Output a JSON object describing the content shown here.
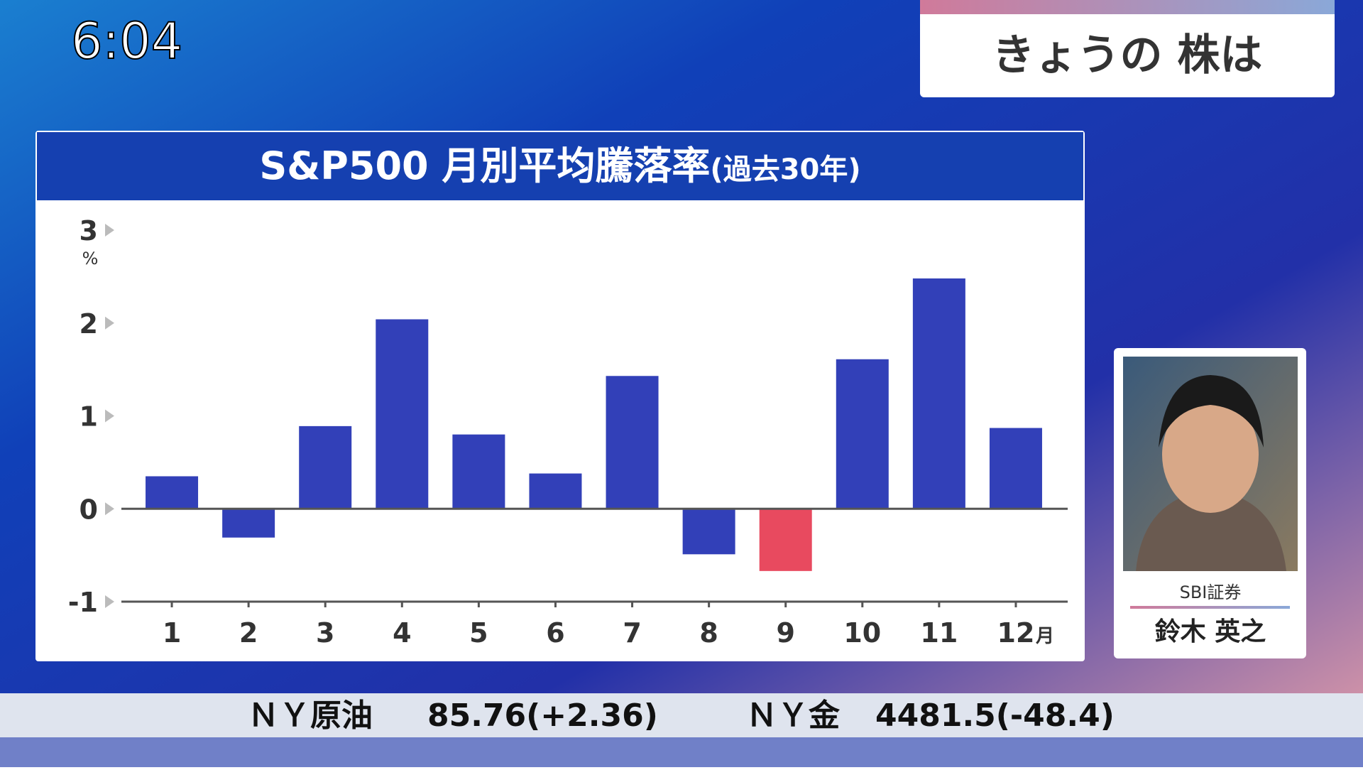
{
  "clock": "6:04",
  "segment_title": "きょうの 株は",
  "chart_data": {
    "type": "bar",
    "title": "S&P500 月別平均騰落率",
    "title_note": "(過去30年)",
    "categories": [
      "1",
      "2",
      "3",
      "4",
      "5",
      "6",
      "7",
      "8",
      "9",
      "10",
      "11",
      "12"
    ],
    "x_unit": "月",
    "y_unit": "%",
    "values": [
      0.35,
      -0.31,
      0.89,
      2.04,
      0.8,
      0.38,
      1.43,
      -0.49,
      -0.67,
      1.61,
      2.48,
      0.87
    ],
    "colors": [
      "#3240b8",
      "#3240b8",
      "#3240b8",
      "#3240b8",
      "#3240b8",
      "#3240b8",
      "#3240b8",
      "#3240b8",
      "#e84a5f",
      "#3240b8",
      "#3240b8",
      "#3240b8"
    ],
    "ylim": [
      -1,
      3
    ],
    "yticks": [
      -1,
      0,
      1,
      2,
      3
    ],
    "grid": false
  },
  "guest": {
    "company": "SBI証券",
    "name": "鈴木 英之"
  },
  "ticker": [
    {
      "label": "ＮＹ原油",
      "value": "85.76(+2.36)"
    },
    {
      "label": "ＮＹ金",
      "value": "4481.5(-48.4)"
    }
  ]
}
